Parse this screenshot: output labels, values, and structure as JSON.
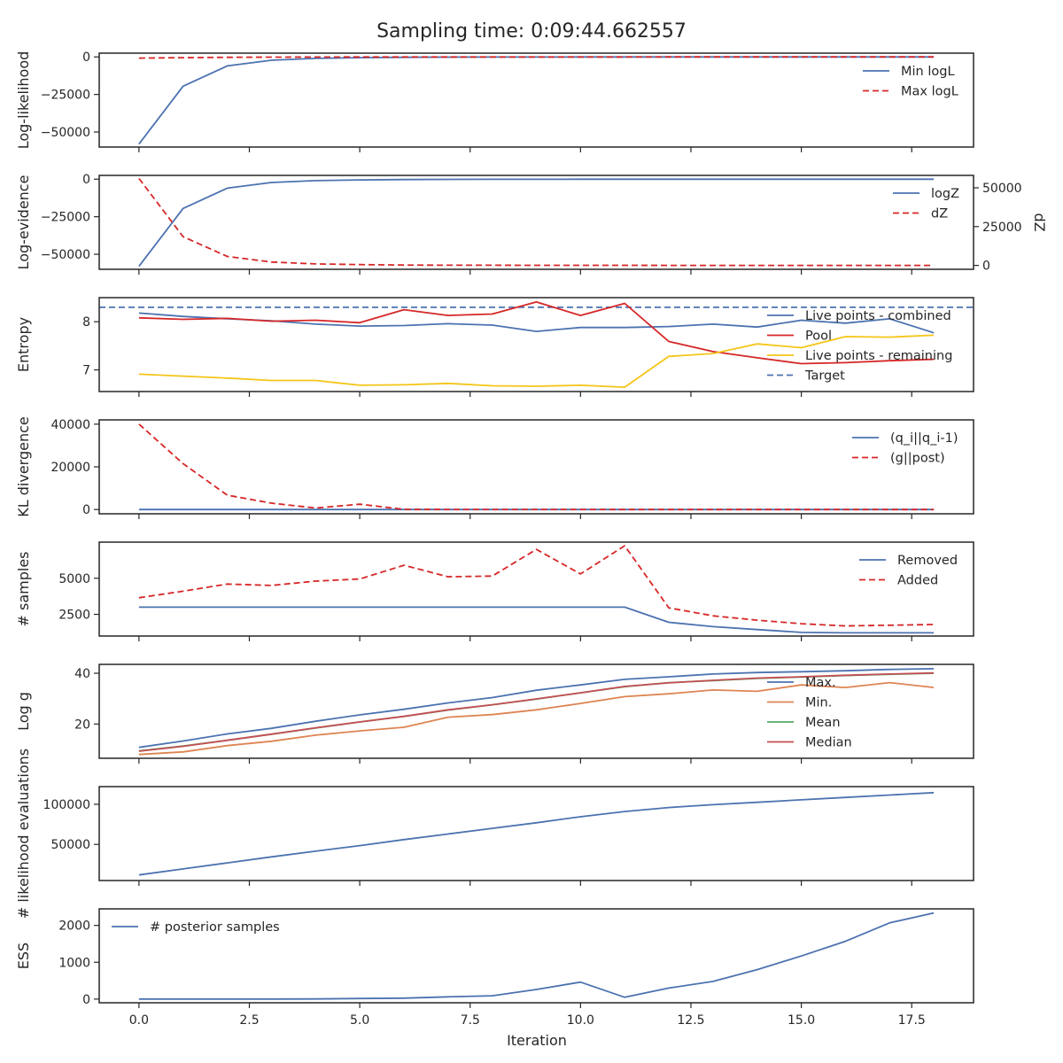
{
  "title": "Sampling time: 0:09:44.662557",
  "xlabel": "Iteration",
  "xlim": [
    -0.9,
    18.9
  ],
  "x_ticks": [
    0,
    2.5,
    5,
    7.5,
    10,
    12.5,
    15,
    17.5
  ],
  "x_tick_labels": [
    "0.0",
    "2.5",
    "5.0",
    "7.5",
    "10.0",
    "12.5",
    "15.0",
    "17.5"
  ],
  "colors": {
    "blue": "#4c72b0",
    "red": "#d62728",
    "yellow": "#f5c518",
    "orange": "#dd8452",
    "green": "#55a868",
    "maroon": "#c44e52"
  },
  "chart_data": [
    {
      "type": "line",
      "ylabel": "Log-likelihood",
      "ylim": [
        -60000,
        2500
      ],
      "y_ticks": [
        -50000,
        -25000,
        0
      ],
      "y_tick_labels": [
        "−50000",
        "−25000",
        "0"
      ],
      "legend": "right-upper",
      "x": [
        0,
        1,
        2,
        3,
        4,
        5,
        6,
        7,
        8,
        9,
        10,
        11,
        12,
        13,
        14,
        15,
        16,
        17,
        18
      ],
      "series": [
        {
          "name": "Min logL",
          "color": "blue",
          "dash": false,
          "axis": "left",
          "values": [
            -58000,
            -19500,
            -6000,
            -2200,
            -1000,
            -500,
            -250,
            -150,
            -100,
            -70,
            -50,
            -40,
            -30,
            -25,
            -20,
            -15,
            -12,
            -10,
            -8
          ]
        },
        {
          "name": "Max logL",
          "color": "red",
          "dash": true,
          "axis": "left",
          "values": [
            -800,
            -500,
            -300,
            -150,
            -80,
            -50,
            -30,
            -20,
            -15,
            -10,
            -8,
            -6,
            -5,
            -4,
            -3,
            -3,
            -2,
            -2,
            -2
          ]
        }
      ]
    },
    {
      "type": "line",
      "ylabel": "Log-evidence",
      "ylim": [
        -60000,
        2500
      ],
      "y_ticks": [
        -50000,
        -25000,
        0
      ],
      "y_tick_labels": [
        "−50000",
        "−25000",
        "0"
      ],
      "y2label": "dZ",
      "y2lim": [
        -2500,
        58000
      ],
      "y2_ticks": [
        0,
        25000,
        50000
      ],
      "y2_tick_labels": [
        "0",
        "25000",
        "50000"
      ],
      "legend": "right-upper",
      "x": [
        0,
        1,
        2,
        3,
        4,
        5,
        6,
        7,
        8,
        9,
        10,
        11,
        12,
        13,
        14,
        15,
        16,
        17,
        18
      ],
      "series": [
        {
          "name": "logZ",
          "color": "blue",
          "dash": false,
          "axis": "left",
          "values": [
            -58000,
            -19500,
            -6000,
            -2200,
            -1000,
            -500,
            -250,
            -150,
            -100,
            -70,
            -50,
            -40,
            -30,
            -25,
            -20,
            -15,
            -12,
            -10,
            -8
          ]
        },
        {
          "name": "dZ",
          "color": "red",
          "dash": true,
          "axis": "right",
          "values": [
            56000,
            18500,
            5800,
            2200,
            1000,
            500,
            250,
            150,
            100,
            70,
            50,
            40,
            30,
            25,
            20,
            15,
            12,
            10,
            8
          ]
        }
      ]
    },
    {
      "type": "line",
      "ylabel": "Entropy",
      "ylim": [
        6.55,
        8.5
      ],
      "y_ticks": [
        7,
        8
      ],
      "y_tick_labels": [
        "7",
        "8"
      ],
      "legend": "right-upper",
      "x": [
        0,
        1,
        2,
        3,
        4,
        5,
        6,
        7,
        8,
        9,
        10,
        11,
        12,
        13,
        14,
        15,
        16,
        17,
        18
      ],
      "series": [
        {
          "name": "Live points - combined",
          "color": "blue",
          "dash": false,
          "axis": "left",
          "values": [
            8.18,
            8.11,
            8.06,
            8.02,
            7.95,
            7.91,
            7.92,
            7.96,
            7.93,
            7.8,
            7.88,
            7.88,
            7.9,
            7.95,
            7.89,
            8.03,
            7.97,
            8.06,
            7.77
          ]
        },
        {
          "name": "Pool",
          "color": "red",
          "dash": false,
          "axis": "left",
          "values": [
            8.08,
            8.05,
            8.07,
            8.01,
            8.03,
            7.98,
            8.25,
            8.13,
            8.16,
            8.41,
            8.13,
            8.38,
            7.59,
            7.38,
            7.25,
            7.13,
            7.15,
            7.19,
            7.22
          ]
        },
        {
          "name": "Live points - remaining",
          "color": "yellow",
          "dash": false,
          "axis": "left",
          "values": [
            6.91,
            6.87,
            6.83,
            6.78,
            6.78,
            6.68,
            6.69,
            6.72,
            6.67,
            6.66,
            6.68,
            6.64,
            7.28,
            7.34,
            7.54,
            7.46,
            7.69,
            7.68,
            7.72
          ]
        }
      ],
      "reference_lines": [
        {
          "name": "Target",
          "color": "blue",
          "dash": true,
          "y": 8.3
        }
      ]
    },
    {
      "type": "line",
      "ylabel": "KL divergence",
      "ylim": [
        -2000,
        42000
      ],
      "y_ticks": [
        0,
        20000,
        40000
      ],
      "y_tick_labels": [
        "0",
        "20000",
        "40000"
      ],
      "legend": "right-upper",
      "x": [
        0,
        1,
        2,
        3,
        4,
        5,
        6,
        7,
        8,
        9,
        10,
        11,
        12,
        13,
        14,
        15,
        16,
        17,
        18
      ],
      "series": [
        {
          "name": "(q_i||q_i-1)",
          "color": "blue",
          "dash": false,
          "axis": "left",
          "values": [
            0,
            0,
            0,
            0,
            0,
            0,
            0,
            0,
            0,
            0,
            0,
            0,
            0,
            0,
            0,
            0,
            0,
            0,
            0
          ]
        },
        {
          "name": "(g||post)",
          "color": "red",
          "dash": true,
          "axis": "left",
          "values": [
            40000,
            21500,
            6700,
            3000,
            700,
            2500,
            80,
            40,
            30,
            20,
            15,
            12,
            10,
            8,
            6,
            5,
            4,
            3,
            3
          ]
        }
      ]
    },
    {
      "type": "line",
      "ylabel": "# samples",
      "ylim": [
        1000,
        7500
      ],
      "y_ticks": [
        2500,
        5000
      ],
      "y_tick_labels": [
        "2500",
        "5000"
      ],
      "legend": "right-upper",
      "x": [
        0,
        1,
        2,
        3,
        4,
        5,
        6,
        7,
        8,
        9,
        10,
        11,
        12,
        13,
        14,
        15,
        16,
        17,
        18
      ],
      "series": [
        {
          "name": "Removed",
          "color": "blue",
          "dash": false,
          "axis": "left",
          "values": [
            3000,
            3000,
            3000,
            3000,
            3000,
            3000,
            3000,
            3000,
            3000,
            3000,
            3000,
            3000,
            1950,
            1650,
            1450,
            1250,
            1220,
            1220,
            1220
          ]
        },
        {
          "name": "Added",
          "color": "red",
          "dash": true,
          "axis": "left",
          "values": [
            3650,
            4100,
            4600,
            4500,
            4800,
            4950,
            5900,
            5100,
            5150,
            7000,
            5300,
            7250,
            2950,
            2400,
            2100,
            1850,
            1700,
            1750,
            1800
          ]
        }
      ]
    },
    {
      "type": "line",
      "ylabel": "Log g",
      "ylim": [
        6.5,
        43.5
      ],
      "y_ticks": [
        20,
        40
      ],
      "y_tick_labels": [
        "20",
        "40"
      ],
      "legend": "right-upper",
      "x": [
        0,
        1,
        2,
        3,
        4,
        5,
        6,
        7,
        8,
        9,
        10,
        11,
        12,
        13,
        14,
        15,
        16,
        17,
        18
      ],
      "series": [
        {
          "name": "Max.",
          "color": "blue",
          "dash": false,
          "axis": "left",
          "values": [
            10.8,
            13.3,
            16.1,
            18.3,
            21.1,
            23.6,
            25.8,
            28.3,
            30.4,
            33.3,
            35.4,
            37.6,
            38.6,
            39.7,
            40.3,
            40.6,
            41.0,
            41.5,
            41.8
          ]
        },
        {
          "name": "Min.",
          "color": "orange",
          "dash": false,
          "axis": "left",
          "values": [
            8.0,
            9.0,
            11.5,
            13.2,
            15.6,
            17.3,
            18.7,
            22.7,
            23.7,
            25.6,
            28.1,
            30.8,
            31.9,
            33.4,
            32.9,
            35.4,
            34.4,
            36.3,
            34.4
          ]
        },
        {
          "name": "Mean",
          "color": "green",
          "dash": false,
          "axis": "left",
          "values": [
            9.4,
            11.3,
            13.6,
            16.0,
            18.4,
            20.8,
            23.0,
            25.5,
            27.6,
            29.8,
            32.3,
            34.7,
            36.3,
            37.1,
            38.0,
            38.5,
            39.1,
            39.6,
            40.0
          ]
        },
        {
          "name": "Median",
          "color": "maroon",
          "dash": false,
          "axis": "left",
          "values": [
            9.3,
            11.2,
            13.6,
            16.0,
            18.5,
            20.8,
            23.0,
            25.6,
            27.6,
            29.9,
            32.3,
            34.8,
            36.2,
            37.2,
            38.1,
            38.6,
            39.2,
            39.7,
            40.1
          ]
        }
      ]
    },
    {
      "type": "line",
      "ylabel": "# likelihood evaluations",
      "ylim": [
        5000,
        122000
      ],
      "y_ticks": [
        50000,
        100000
      ],
      "y_tick_labels": [
        "50000",
        "100000"
      ],
      "legend": "none",
      "x": [
        0,
        1,
        2,
        3,
        4,
        5,
        6,
        7,
        8,
        9,
        10,
        11,
        12,
        13,
        14,
        15,
        16,
        17,
        18
      ],
      "series": [
        {
          "name": "",
          "color": "blue",
          "dash": false,
          "axis": "left",
          "values": [
            12000,
            19500,
            27000,
            34500,
            41500,
            48500,
            56000,
            63000,
            70000,
            77000,
            84500,
            91000,
            96000,
            99500,
            102500,
            105500,
            108500,
            111500,
            114500
          ]
        }
      ]
    },
    {
      "type": "line",
      "ylabel": "ESS",
      "ylim": [
        -100,
        2450
      ],
      "y_ticks": [
        0,
        1000,
        2000
      ],
      "y_tick_labels": [
        "0",
        "1000",
        "2000"
      ],
      "legend": "left-upper",
      "x": [
        0,
        1,
        2,
        3,
        4,
        5,
        6,
        7,
        8,
        9,
        10,
        11,
        12,
        13,
        14,
        15,
        16,
        17,
        18
      ],
      "series": [
        {
          "name": "# posterior samples",
          "color": "blue",
          "dash": false,
          "axis": "left",
          "values": [
            0,
            0,
            0,
            2,
            3,
            15,
            25,
            60,
            90,
            260,
            460,
            50,
            300,
            480,
            800,
            1170,
            1570,
            2070,
            2340
          ]
        }
      ]
    }
  ]
}
